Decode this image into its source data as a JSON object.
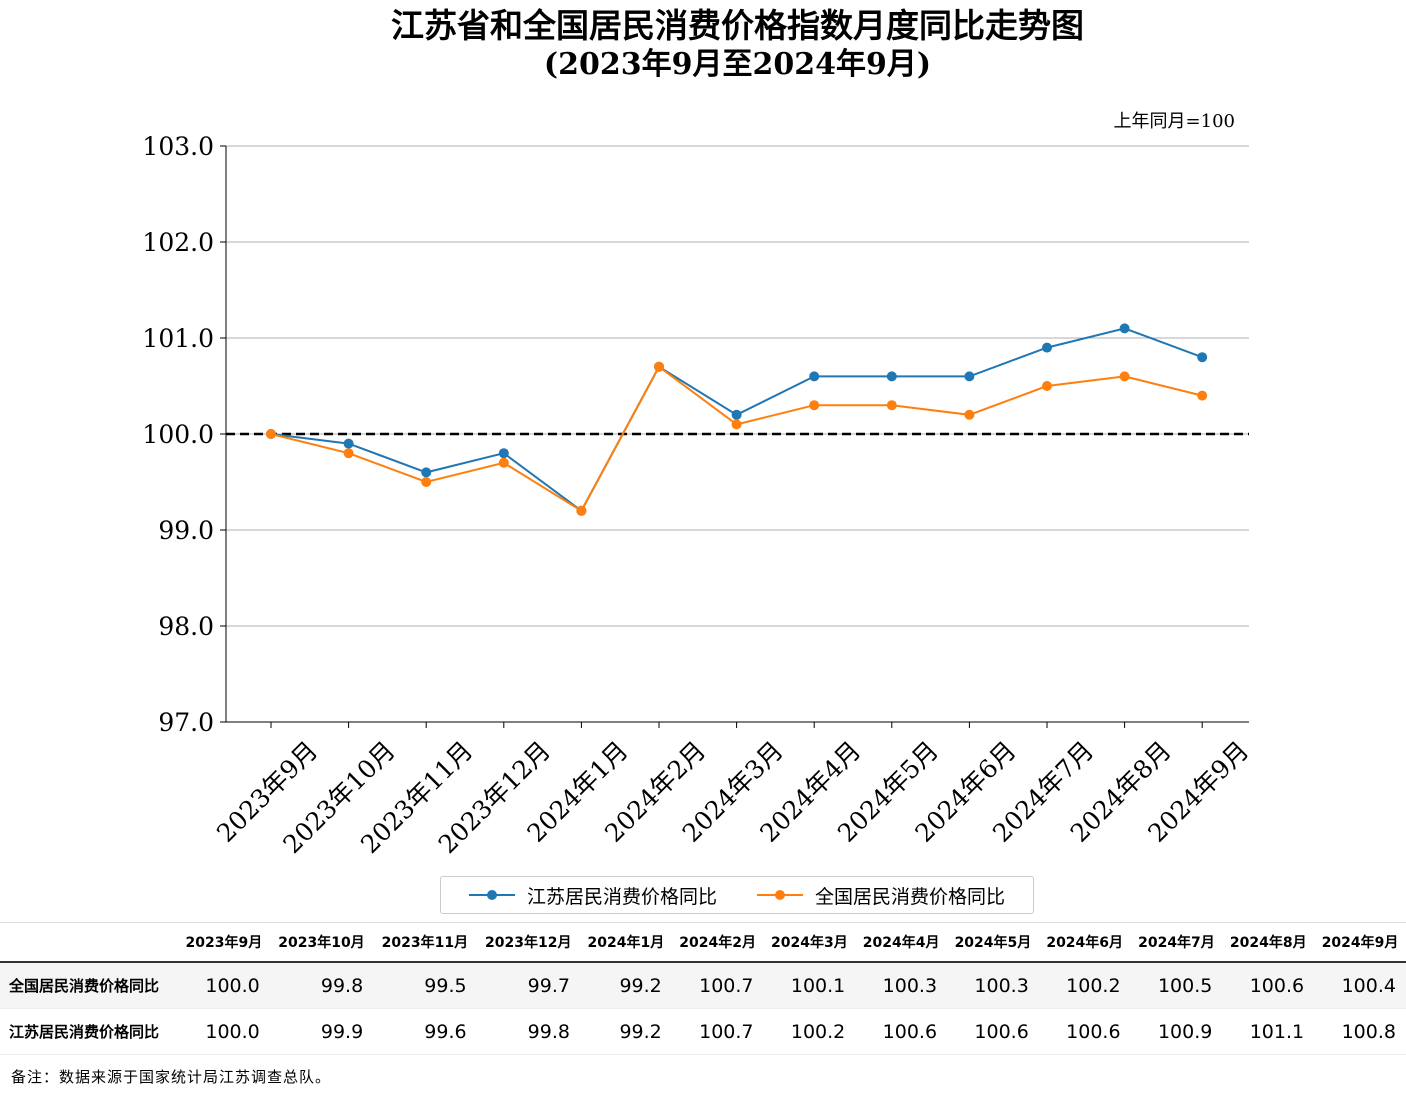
{
  "title": "江苏省和全国居民消费价格指数月度同比走势图",
  "subtitle": "(2023年9月至2024年9月)",
  "unit_note": "上年同月=100",
  "footnote": "备注：数据来源于国家统计局江苏调查总队。",
  "table": {
    "header_label": "",
    "rows": [
      {
        "label": "全国居民消费价格同比",
        "values": [
          "100.0",
          "99.8",
          "99.5",
          "99.7",
          "99.2",
          "100.7",
          "100.1",
          "100.3",
          "100.3",
          "100.2",
          "100.5",
          "100.6",
          "100.4"
        ]
      },
      {
        "label": "江苏居民消费价格同比",
        "values": [
          "100.0",
          "99.9",
          "99.6",
          "99.8",
          "99.2",
          "100.7",
          "100.2",
          "100.6",
          "100.6",
          "100.6",
          "100.9",
          "101.1",
          "100.8"
        ]
      }
    ]
  },
  "chart_data": {
    "type": "line",
    "title": "江苏省和全国居民消费价格指数月度同比走势图",
    "subtitle": "(2023年9月至2024年9月)",
    "categories": [
      "2023年9月",
      "2023年10月",
      "2023年11月",
      "2023年12月",
      "2024年1月",
      "2024年2月",
      "2024年3月",
      "2024年4月",
      "2024年5月",
      "2024年6月",
      "2024年7月",
      "2024年8月",
      "2024年9月"
    ],
    "series": [
      {
        "name": "江苏居民消费价格同比",
        "color": "#1f77b4",
        "values": [
          100.0,
          99.9,
          99.6,
          99.8,
          99.2,
          100.7,
          100.2,
          100.6,
          100.6,
          100.6,
          100.9,
          101.1,
          100.8
        ]
      },
      {
        "name": "全国居民消费价格同比",
        "color": "#ff7f0e",
        "values": [
          100.0,
          99.8,
          99.5,
          99.7,
          99.2,
          100.7,
          100.1,
          100.3,
          100.3,
          100.2,
          100.5,
          100.6,
          100.4
        ]
      }
    ],
    "ylim": [
      97.0,
      103.0
    ],
    "yticks": [
      "97.0",
      "98.0",
      "99.0",
      "100.0",
      "101.0",
      "102.0",
      "103.0"
    ],
    "reference_line": 100.0,
    "grid": "horizontal",
    "legend_position": "bottom-center",
    "xlabel": "",
    "ylabel": ""
  }
}
